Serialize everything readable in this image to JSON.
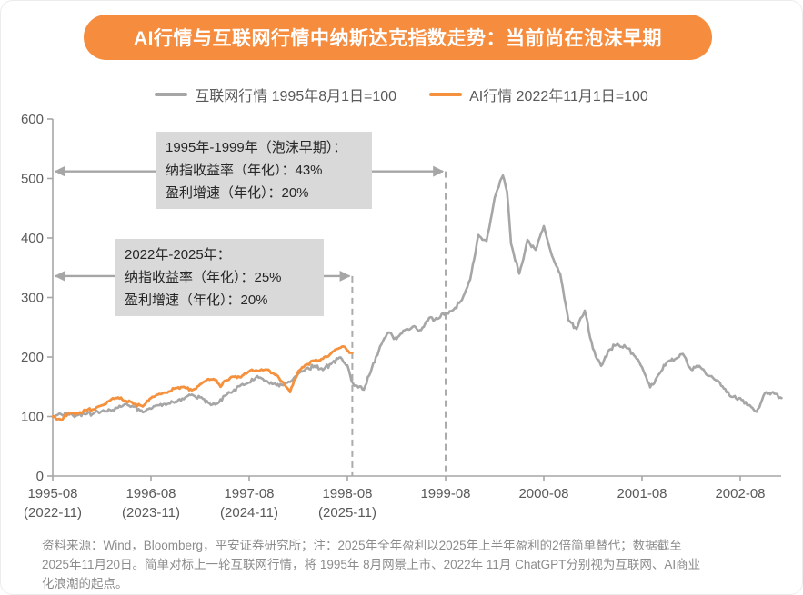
{
  "banner": {
    "title": "AI行情与互联网行情中纳斯达克指数走势：当前尚在泡沫早期",
    "bg_color": "#F68C3E",
    "text_color": "#FFFFFF"
  },
  "legend": {
    "items": [
      {
        "label": "互联网行情 1995年8月1日=100",
        "color": "#A6A6A6"
      },
      {
        "label": "AI行情 2022年11月1日=100",
        "color": "#F5913D"
      }
    ]
  },
  "annotations": {
    "bubble_early": {
      "lines": [
        "1995年-1999年（泡沫早期）：",
        "纳指收益率（年化）：43%",
        "盈利增速（年化）：20%"
      ]
    },
    "ai_period": {
      "lines": [
        "2022年-2025年：",
        "纳指收益率（年化）：25%",
        "盈利增速（年化）：20%"
      ]
    }
  },
  "footer": {
    "lines": [
      "资料来源：Wind，Bloomberg，平安证券研究所；注：2025年全年盈利以2025年上半年盈利的2倍简单替代；数据截至",
      "2025年11月20日。简单对标上一轮互联网行情，将 1995年 8月网景上市、2022年 11月 ChatGPT分别视为互联网、AI商业",
      "化浪潮的起点。"
    ]
  },
  "chart_data": {
    "type": "line",
    "title": "AI行情与互联网行情中纳斯达克指数走势：当前尚在泡沫早期",
    "xlabel": "",
    "ylabel": "",
    "grid": false,
    "legend_position": "top",
    "y_axis": {
      "range": [
        0,
        600
      ],
      "ticks": [
        0,
        100,
        200,
        300,
        400,
        500,
        600
      ]
    },
    "x_axis": {
      "unit": "years_since_1995-08",
      "ticks": [
        {
          "x_years": 0,
          "label": "1995-08",
          "sub": "(2022-11)"
        },
        {
          "x_years": 1,
          "label": "1996-08",
          "sub": "(2023-11)"
        },
        {
          "x_years": 2,
          "label": "1997-08",
          "sub": "(2024-11)"
        },
        {
          "x_years": 3,
          "label": "1998-08",
          "sub": "(2025-11)"
        },
        {
          "x_years": 4,
          "label": "1999-08",
          "sub": ""
        },
        {
          "x_years": 5,
          "label": "2000-08",
          "sub": ""
        },
        {
          "x_years": 6,
          "label": "2001-08",
          "sub": ""
        },
        {
          "x_years": 7,
          "label": "2002-08",
          "sub": ""
        }
      ]
    },
    "series": [
      {
        "name": "互联网行情 1995年8月1日=100",
        "color": "#A6A6A6",
        "points": [
          [
            0,
            100
          ],
          [
            0.083,
            104
          ],
          [
            0.167,
            103
          ],
          [
            0.25,
            102
          ],
          [
            0.333,
            104
          ],
          [
            0.417,
            105
          ],
          [
            0.5,
            109
          ],
          [
            0.583,
            111
          ],
          [
            0.667,
            115
          ],
          [
            0.75,
            121
          ],
          [
            0.833,
            117
          ],
          [
            0.917,
            107
          ],
          [
            1,
            113
          ],
          [
            1.083,
            119
          ],
          [
            1.167,
            121
          ],
          [
            1.25,
            125
          ],
          [
            1.333,
            129
          ],
          [
            1.417,
            137
          ],
          [
            1.5,
            132
          ],
          [
            1.583,
            123
          ],
          [
            1.667,
            121
          ],
          [
            1.75,
            135
          ],
          [
            1.833,
            142
          ],
          [
            1.917,
            153
          ],
          [
            2,
            157
          ],
          [
            2.083,
            168
          ],
          [
            2.167,
            160
          ],
          [
            2.25,
            155
          ],
          [
            2.333,
            153
          ],
          [
            2.417,
            158
          ],
          [
            2.5,
            172
          ],
          [
            2.583,
            181
          ],
          [
            2.667,
            185
          ],
          [
            2.75,
            178
          ],
          [
            2.833,
            188
          ],
          [
            2.917,
            199
          ],
          [
            2.958,
            192
          ],
          [
            3,
            186
          ],
          [
            3.042,
            160
          ],
          [
            3.083,
            152
          ],
          [
            3.167,
            145
          ],
          [
            3.25,
            182
          ],
          [
            3.333,
            218
          ],
          [
            3.417,
            241
          ],
          [
            3.5,
            230
          ],
          [
            3.583,
            245
          ],
          [
            3.667,
            251
          ],
          [
            3.75,
            245
          ],
          [
            3.833,
            266
          ],
          [
            3.917,
            264
          ],
          [
            4,
            274
          ],
          [
            4.083,
            280
          ],
          [
            4.167,
            296
          ],
          [
            4.25,
            330
          ],
          [
            4.333,
            405
          ],
          [
            4.417,
            395
          ],
          [
            4.5,
            468
          ],
          [
            4.583,
            505
          ],
          [
            4.625,
            478
          ],
          [
            4.667,
            390
          ],
          [
            4.75,
            340
          ],
          [
            4.833,
            397
          ],
          [
            4.917,
            380
          ],
          [
            5,
            420
          ],
          [
            5.083,
            370
          ],
          [
            5.167,
            340
          ],
          [
            5.25,
            262
          ],
          [
            5.333,
            247
          ],
          [
            5.417,
            278
          ],
          [
            5.5,
            214
          ],
          [
            5.583,
            185
          ],
          [
            5.667,
            212
          ],
          [
            5.75,
            222
          ],
          [
            5.833,
            217
          ],
          [
            5.917,
            203
          ],
          [
            6,
            183
          ],
          [
            6.083,
            149
          ],
          [
            6.167,
            170
          ],
          [
            6.25,
            191
          ],
          [
            6.333,
            196
          ],
          [
            6.417,
            205
          ],
          [
            6.5,
            179
          ],
          [
            6.583,
            185
          ],
          [
            6.667,
            169
          ],
          [
            6.75,
            161
          ],
          [
            6.833,
            147
          ],
          [
            6.917,
            133
          ],
          [
            7,
            131
          ],
          [
            7.083,
            119
          ],
          [
            7.167,
            108
          ],
          [
            7.25,
            139
          ],
          [
            7.333,
            141
          ],
          [
            7.42,
            131
          ]
        ]
      },
      {
        "name": "AI行情 2022年11月1日=100",
        "color": "#F5913D",
        "points": [
          [
            0,
            100
          ],
          [
            0.083,
            94
          ],
          [
            0.167,
            106
          ],
          [
            0.25,
            105
          ],
          [
            0.333,
            111
          ],
          [
            0.417,
            112
          ],
          [
            0.5,
            119
          ],
          [
            0.583,
            127
          ],
          [
            0.667,
            132
          ],
          [
            0.75,
            126
          ],
          [
            0.833,
            121
          ],
          [
            0.917,
            117
          ],
          [
            1,
            131
          ],
          [
            1.083,
            138
          ],
          [
            1.167,
            140
          ],
          [
            1.25,
            148
          ],
          [
            1.333,
            150
          ],
          [
            1.417,
            144
          ],
          [
            1.5,
            154
          ],
          [
            1.583,
            163
          ],
          [
            1.667,
            161
          ],
          [
            1.708,
            150
          ],
          [
            1.75,
            160
          ],
          [
            1.833,
            167
          ],
          [
            1.917,
            166
          ],
          [
            2,
            176
          ],
          [
            2.083,
            177
          ],
          [
            2.167,
            179
          ],
          [
            2.25,
            172
          ],
          [
            2.333,
            159
          ],
          [
            2.417,
            141
          ],
          [
            2.458,
            161
          ],
          [
            2.5,
            176
          ],
          [
            2.583,
            187
          ],
          [
            2.667,
            194
          ],
          [
            2.75,
            197
          ],
          [
            2.833,
            206
          ],
          [
            2.917,
            215
          ],
          [
            2.975,
            217
          ],
          [
            3.008,
            210
          ],
          [
            3.05,
            207
          ]
        ]
      }
    ],
    "reference_lines": [
      {
        "x_years": 3.05,
        "top_value": 336
      },
      {
        "x_years": 4.0,
        "top_value": 512
      }
    ],
    "range_arrows": [
      {
        "y_value": 512,
        "from_years": 0,
        "to_years": 4.0
      },
      {
        "y_value": 336,
        "from_years": 0,
        "to_years": 3.05
      }
    ],
    "axis_color": "#A6A6A6",
    "label_color": "#595959"
  }
}
